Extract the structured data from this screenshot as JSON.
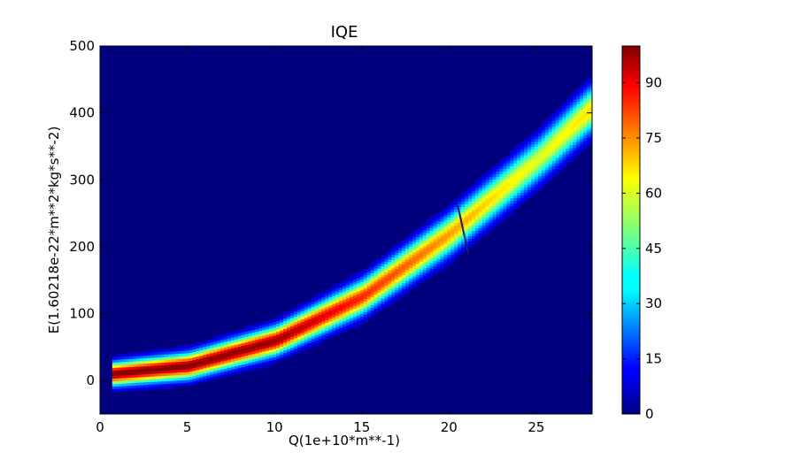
{
  "chart_data": {
    "type": "heatmap",
    "title": "IQE",
    "xlabel": "Q(1e+10*m**-1)",
    "ylabel": "E(1.60218e-22*m**2*kg*s**-2)",
    "xlim": [
      0,
      28.2
    ],
    "ylim": [
      -50,
      500
    ],
    "xticks": [
      "0",
      "5",
      "10",
      "15",
      "20",
      "25"
    ],
    "yticks": [
      "0",
      "100",
      "200",
      "300",
      "400",
      "500"
    ],
    "colormap": "jet",
    "background_color": "#00007f",
    "colorbar": {
      "range": [
        0,
        100
      ],
      "ticks": [
        "0",
        "15",
        "30",
        "45",
        "60",
        "75",
        "90"
      ]
    },
    "band": {
      "q_start": 0.7,
      "q_end": 28.1,
      "energy_center": [
        {
          "q": 0.7,
          "e": 10
        },
        {
          "q": 5,
          "e": 22
        },
        {
          "q": 10,
          "e": 60
        },
        {
          "q": 15,
          "e": 126
        },
        {
          "q": 20,
          "e": 220
        },
        {
          "q": 25,
          "e": 330
        },
        {
          "q": 28,
          "e": 405
        }
      ],
      "intensity": [
        {
          "q": 0.7,
          "i": 100
        },
        {
          "q": 5,
          "i": 100
        },
        {
          "q": 10,
          "i": 98
        },
        {
          "q": 15,
          "i": 84
        },
        {
          "q": 20,
          "i": 72
        },
        {
          "q": 25,
          "i": 60
        },
        {
          "q": 28,
          "i": 66
        }
      ],
      "width": [
        {
          "q": 0.7,
          "w": 24
        },
        {
          "q": 10,
          "w": 30
        },
        {
          "q": 20,
          "w": 42
        },
        {
          "q": 28,
          "w": 48
        }
      ]
    },
    "gap_line": {
      "q_top": 20.5,
      "e_top": 262,
      "q_bottom": 21.1,
      "e_bottom": 190
    }
  }
}
